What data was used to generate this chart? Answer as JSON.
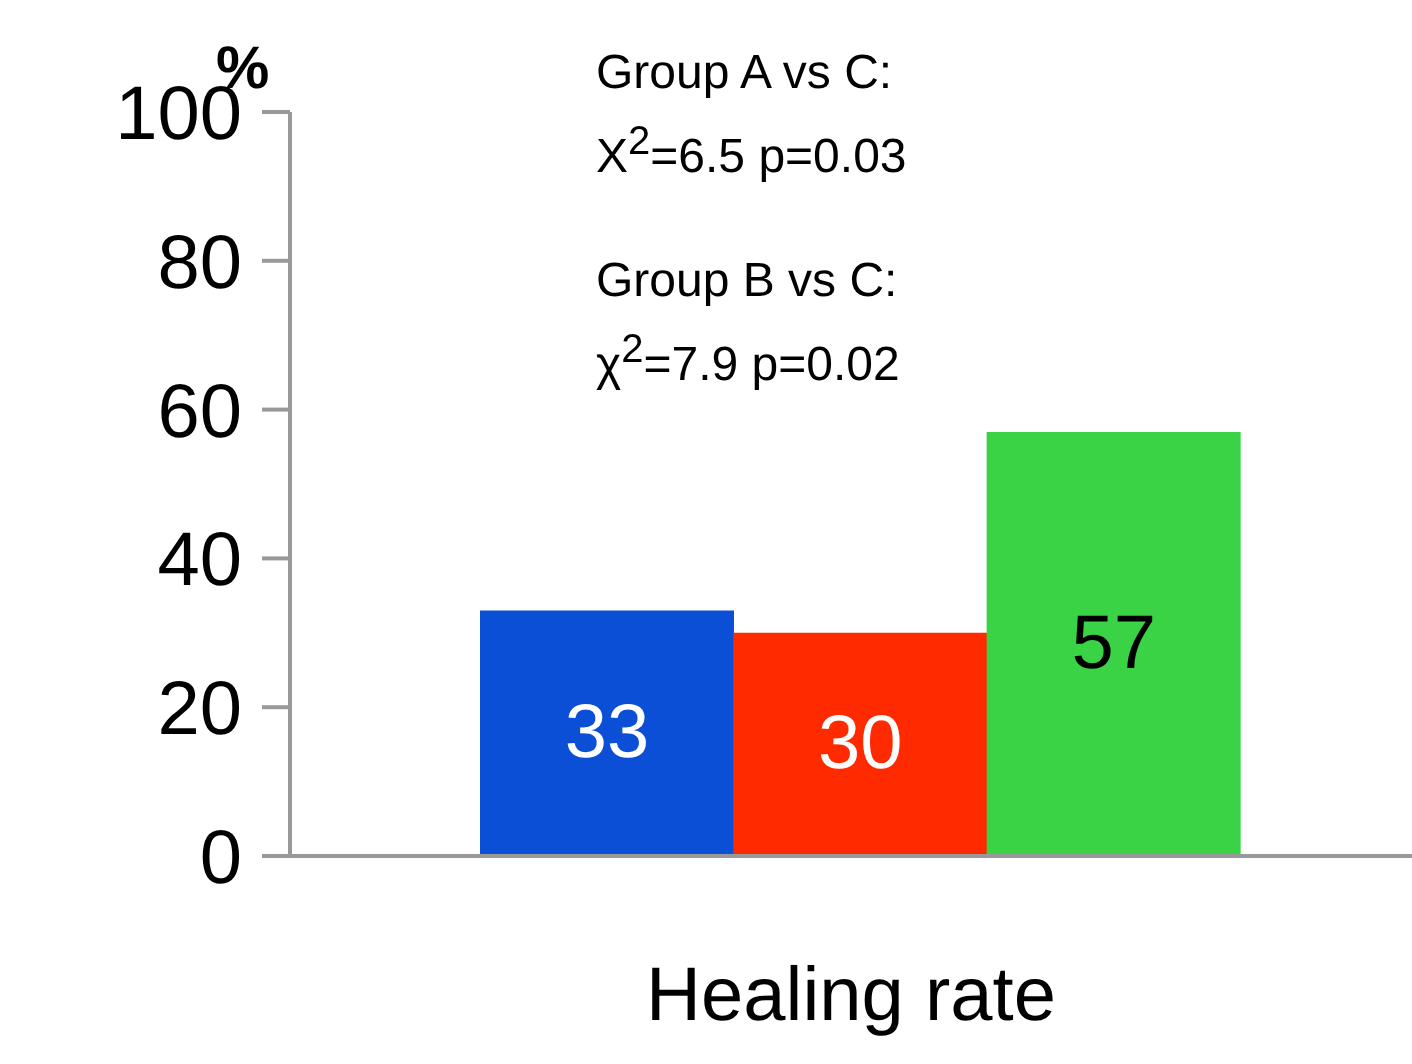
{
  "chart_data": {
    "type": "bar",
    "ylabel": "%",
    "xlabel": "Healing rate",
    "categories": [
      null,
      null,
      null
    ],
    "values": [
      33,
      30,
      57
    ],
    "colors": [
      "#0b4fd6",
      "#ff2a00",
      "#3ad345"
    ],
    "ylim": [
      0,
      100
    ],
    "yticks": [
      0,
      20,
      40,
      60,
      80,
      100
    ],
    "grid": false,
    "legend": false,
    "data_labels": true,
    "annotations": [
      "Group A vs C:\nX$^{2}$=6.5 p=0.03",
      "Group B vs C:\nχ$^{2}$=7.9 p=0.02"
    ]
  }
}
